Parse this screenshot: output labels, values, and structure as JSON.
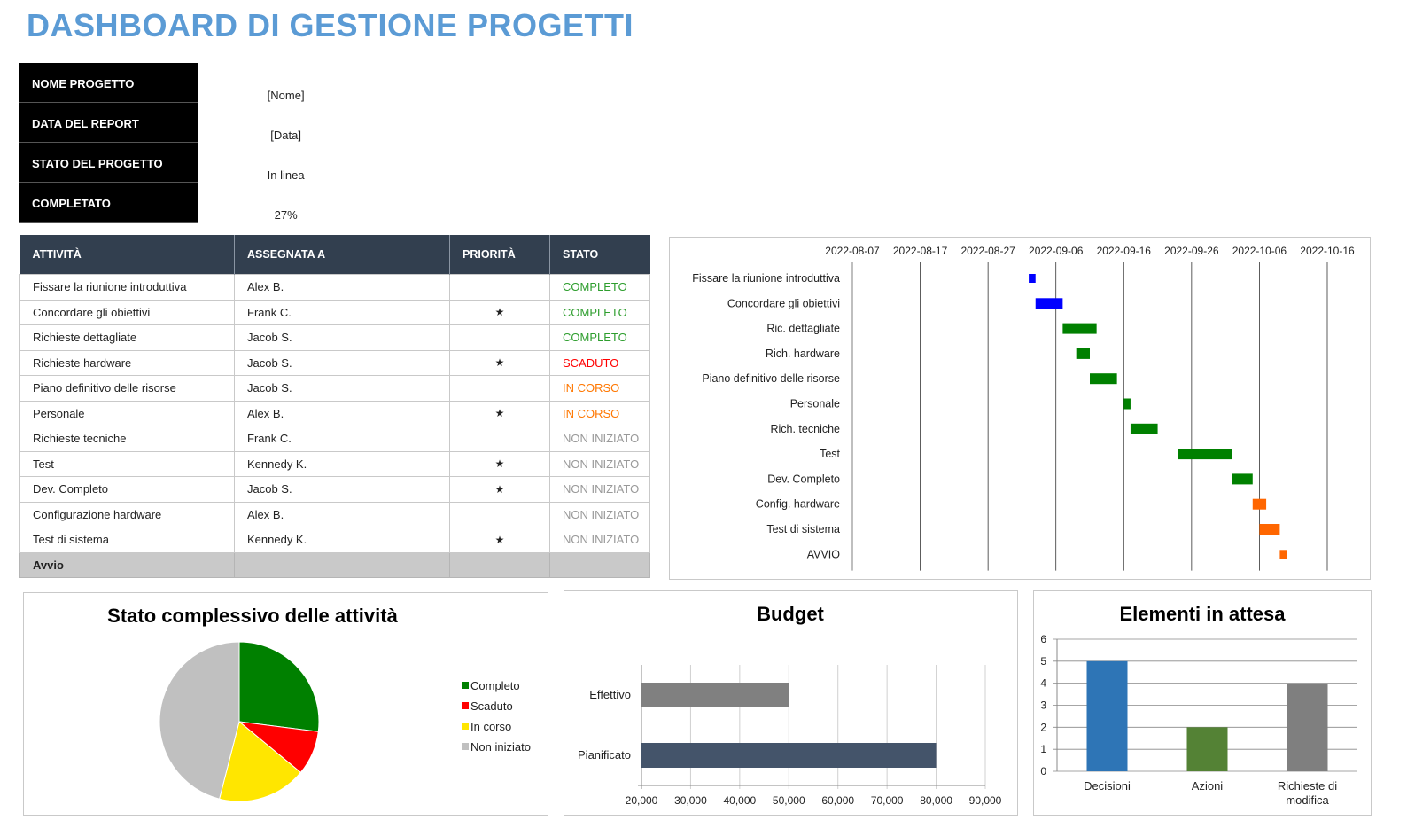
{
  "title": "DASHBOARD DI GESTIONE PROGETTI",
  "info": [
    {
      "label": "NOME PROGETTO",
      "value": "[Nome]"
    },
    {
      "label": "DATA DEL REPORT",
      "value": "[Data]"
    },
    {
      "label": "STATO DEL PROGETTO",
      "value": "In linea"
    },
    {
      "label": "COMPLETATO",
      "value": "27%"
    }
  ],
  "table": {
    "headers": [
      "ATTIVITÀ",
      "ASSEGNATA A",
      "PRIORITÀ",
      "STATO"
    ],
    "rows": [
      {
        "task": "Fissare la riunione introduttiva",
        "assignee": "Alex B.",
        "priority": "",
        "status": "COMPLETO"
      },
      {
        "task": "Concordare gli obiettivi",
        "assignee": "Frank C.",
        "priority": "★",
        "status": "COMPLETO"
      },
      {
        "task": "Richieste dettagliate",
        "assignee": "Jacob S.",
        "priority": "",
        "status": "COMPLETO"
      },
      {
        "task": "Richieste hardware",
        "assignee": "Jacob S.",
        "priority": "★",
        "status": "SCADUTO"
      },
      {
        "task": "Piano definitivo delle risorse",
        "assignee": "Jacob S.",
        "priority": "",
        "status": "IN CORSO"
      },
      {
        "task": "Personale",
        "assignee": "Alex B.",
        "priority": "★",
        "status": "IN CORSO"
      },
      {
        "task": "Richieste tecniche",
        "assignee": "Frank C.",
        "priority": "",
        "status": "NON INIZIATO"
      },
      {
        "task": "Test",
        "assignee": "Kennedy K.",
        "priority": "★",
        "status": "NON INIZIATO"
      },
      {
        "task": "Dev. Completo",
        "assignee": "Jacob S.",
        "priority": "★",
        "status": "NON INIZIATO"
      },
      {
        "task": "Configurazione hardware",
        "assignee": "Alex B.",
        "priority": "",
        "status": "NON INIZIATO"
      },
      {
        "task": "Test di sistema",
        "assignee": "Kennedy K.",
        "priority": "★",
        "status": "NON INIZIATO"
      }
    ],
    "footer": "Avvio"
  },
  "status_classes": {
    "COMPLETO": "st-done",
    "SCADUTO": "st-late",
    "IN CORSO": "st-prog",
    "NON INIZIATO": "st-not"
  },
  "chart_data": [
    {
      "type": "bar",
      "subtype": "gantt",
      "title": "",
      "x_ticks": [
        "2022-08-07",
        "2022-08-17",
        "2022-08-27",
        "2022-09-06",
        "2022-09-16",
        "2022-09-26",
        "2022-10-06",
        "2022-10-16"
      ],
      "xlim": [
        "2022-08-07",
        "2022-10-16"
      ],
      "grid": true,
      "tasks": [
        {
          "label": "Fissare la riunione introduttiva",
          "start": "2022-09-02",
          "end": "2022-09-03",
          "color": "#0000ff"
        },
        {
          "label": "Concordare gli obiettivi",
          "start": "2022-09-03",
          "end": "2022-09-07",
          "color": "#0000ff"
        },
        {
          "label": "Ric. dettagliate",
          "start": "2022-09-07",
          "end": "2022-09-12",
          "color": "#008000"
        },
        {
          "label": "Rich. hardware",
          "start": "2022-09-09",
          "end": "2022-09-11",
          "color": "#008000"
        },
        {
          "label": "Piano definitivo delle risorse",
          "start": "2022-09-11",
          "end": "2022-09-15",
          "color": "#008000"
        },
        {
          "label": "Personale",
          "start": "2022-09-16",
          "end": "2022-09-17",
          "color": "#008000"
        },
        {
          "label": "Rich. tecniche",
          "start": "2022-09-17",
          "end": "2022-09-21",
          "color": "#008000"
        },
        {
          "label": "Test",
          "start": "2022-09-24",
          "end": "2022-10-02",
          "color": "#008000"
        },
        {
          "label": "Dev. Completo",
          "start": "2022-10-02",
          "end": "2022-10-05",
          "color": "#008000"
        },
        {
          "label": "Config. hardware",
          "start": "2022-10-05",
          "end": "2022-10-07",
          "color": "#ff6600"
        },
        {
          "label": "Test di sistema",
          "start": "2022-10-06",
          "end": "2022-10-09",
          "color": "#ff6600"
        },
        {
          "label": "AVVIO",
          "start": "2022-10-09",
          "end": "2022-10-10",
          "color": "#ff6600"
        }
      ]
    },
    {
      "type": "pie",
      "title": "Stato complessivo delle attività",
      "legend_position": "right",
      "slices": [
        {
          "name": "Completo",
          "value": 27,
          "color": "#008000"
        },
        {
          "name": "Scaduto",
          "value": 9,
          "color": "#ff0000"
        },
        {
          "name": "In corso",
          "value": 18,
          "color": "#ffe600"
        },
        {
          "name": "Non iniziato",
          "value": 46,
          "color": "#c0c0c0"
        }
      ]
    },
    {
      "type": "bar",
      "orientation": "horizontal",
      "title": "Budget",
      "categories": [
        "Effettivo",
        "Pianificato"
      ],
      "values": [
        50000,
        80000
      ],
      "colors": [
        "#808080",
        "#44546a"
      ],
      "xlim": [
        20000,
        90000
      ],
      "x_ticks": [
        "20,000",
        "30,000",
        "40,000",
        "50,000",
        "60,000",
        "70,000",
        "80,000",
        "90,000"
      ],
      "grid": true
    },
    {
      "type": "bar",
      "title": "Elementi in attesa",
      "categories": [
        "Decisioni",
        "Azioni",
        "Richieste di modifica"
      ],
      "values": [
        5,
        2,
        4
      ],
      "colors": [
        "#2e75b6",
        "#548235",
        "#7f7f7f"
      ],
      "ylim": [
        0,
        6
      ],
      "y_ticks": [
        "0",
        "1",
        "2",
        "3",
        "4",
        "5",
        "6"
      ],
      "grid": true
    }
  ]
}
